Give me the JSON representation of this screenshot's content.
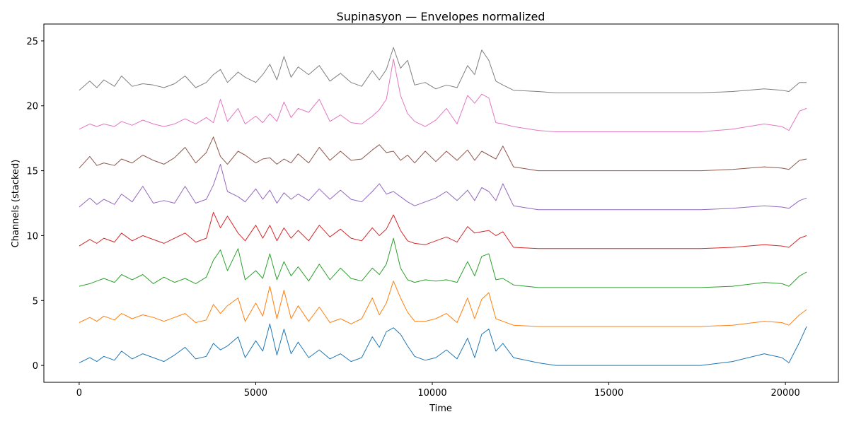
{
  "chart_data": {
    "type": "line",
    "title": "Supinasyon — Envelopes normalized",
    "xlabel": "Time",
    "ylabel": "Channels (stacked)",
    "xlim": [
      -1000,
      21500
    ],
    "ylim": [
      -1.3,
      26.3
    ],
    "xticks": [
      0,
      5000,
      10000,
      15000,
      20000
    ],
    "yticks": [
      0,
      5,
      10,
      15,
      20,
      25
    ],
    "grid": false,
    "legend": "none",
    "series": [
      {
        "color": "#1f77b4",
        "x": [
          0,
          300,
          500,
          700,
          1000,
          1200,
          1500,
          1800,
          2100,
          2400,
          2700,
          3000,
          3300,
          3600,
          3800,
          4000,
          4200,
          4500,
          4700,
          5000,
          5200,
          5400,
          5600,
          5800,
          6000,
          6200,
          6500,
          6800,
          7100,
          7400,
          7700,
          8000,
          8300,
          8500,
          8700,
          8900,
          9100,
          9300,
          9500,
          9800,
          10100,
          10400,
          10700,
          11000,
          11200,
          11400,
          11600,
          11800,
          12000,
          12300,
          13000,
          13500,
          15000,
          17600,
          18500,
          19400,
          19900,
          20100,
          20400,
          20600
        ],
        "y": [
          0.2,
          0.6,
          0.3,
          0.7,
          0.4,
          1.1,
          0.5,
          0.9,
          0.6,
          0.3,
          0.8,
          1.4,
          0.5,
          0.7,
          1.7,
          1.2,
          1.5,
          2.2,
          0.6,
          1.9,
          1.1,
          3.2,
          0.8,
          2.8,
          0.9,
          1.8,
          0.6,
          1.2,
          0.5,
          0.9,
          0.3,
          0.6,
          2.2,
          1.4,
          2.6,
          2.9,
          2.4,
          1.5,
          0.7,
          0.4,
          0.6,
          1.2,
          0.5,
          2.1,
          0.6,
          2.4,
          2.8,
          1.1,
          1.7,
          0.6,
          0.2,
          0.0,
          0.0,
          0.0,
          0.3,
          0.9,
          0.6,
          0.2,
          1.8,
          3.0
        ]
      },
      {
        "color": "#ff7f0e",
        "x": [
          0,
          300,
          500,
          700,
          1000,
          1200,
          1500,
          1800,
          2100,
          2400,
          2700,
          3000,
          3300,
          3600,
          3800,
          4000,
          4200,
          4500,
          4700,
          5000,
          5200,
          5400,
          5600,
          5800,
          6000,
          6200,
          6500,
          6800,
          7100,
          7400,
          7700,
          8000,
          8300,
          8500,
          8700,
          8900,
          9100,
          9300,
          9500,
          9800,
          10100,
          10400,
          10700,
          11000,
          11200,
          11400,
          11600,
          11800,
          12000,
          12300,
          13000,
          13500,
          15000,
          17600,
          18500,
          19400,
          19900,
          20100,
          20400,
          20600
        ],
        "y": [
          3.3,
          3.7,
          3.4,
          3.8,
          3.5,
          4.0,
          3.6,
          3.9,
          3.7,
          3.4,
          3.7,
          4.0,
          3.3,
          3.5,
          4.7,
          4.0,
          4.6,
          5.2,
          3.4,
          4.8,
          3.8,
          6.1,
          3.6,
          5.8,
          3.6,
          4.6,
          3.4,
          4.5,
          3.3,
          3.6,
          3.2,
          3.6,
          5.2,
          3.9,
          4.8,
          6.5,
          5.2,
          4.1,
          3.4,
          3.4,
          3.6,
          4.0,
          3.3,
          5.2,
          3.6,
          5.1,
          5.6,
          3.6,
          3.4,
          3.1,
          3.0,
          3.0,
          3.0,
          3.0,
          3.1,
          3.4,
          3.3,
          3.1,
          3.9,
          4.3
        ]
      },
      {
        "color": "#2ca02c",
        "x": [
          0,
          300,
          500,
          700,
          1000,
          1200,
          1500,
          1800,
          2100,
          2400,
          2700,
          3000,
          3300,
          3600,
          3800,
          4000,
          4200,
          4500,
          4700,
          5000,
          5200,
          5400,
          5600,
          5800,
          6000,
          6200,
          6500,
          6800,
          7100,
          7400,
          7700,
          8000,
          8300,
          8500,
          8700,
          8900,
          9100,
          9300,
          9500,
          9800,
          10100,
          10400,
          10700,
          11000,
          11200,
          11400,
          11600,
          11800,
          12000,
          12300,
          13000,
          13500,
          15000,
          17600,
          18500,
          19400,
          19900,
          20100,
          20400,
          20600
        ],
        "y": [
          6.1,
          6.3,
          6.5,
          6.7,
          6.4,
          7.0,
          6.6,
          7.0,
          6.3,
          6.8,
          6.4,
          6.7,
          6.3,
          6.8,
          8.1,
          8.9,
          7.3,
          9.0,
          6.6,
          7.3,
          6.7,
          8.6,
          6.6,
          8.0,
          6.9,
          7.6,
          6.5,
          7.8,
          6.6,
          7.5,
          6.7,
          6.5,
          7.5,
          7.0,
          7.8,
          9.8,
          7.5,
          6.6,
          6.4,
          6.6,
          6.5,
          6.6,
          6.4,
          8.0,
          6.9,
          8.4,
          8.6,
          6.6,
          6.7,
          6.2,
          6.0,
          6.0,
          6.0,
          6.0,
          6.1,
          6.4,
          6.3,
          6.1,
          6.9,
          7.2
        ]
      },
      {
        "color": "#d62728",
        "x": [
          0,
          300,
          500,
          700,
          1000,
          1200,
          1500,
          1800,
          2100,
          2400,
          2700,
          3000,
          3300,
          3600,
          3800,
          4000,
          4200,
          4500,
          4700,
          5000,
          5200,
          5400,
          5600,
          5800,
          6000,
          6200,
          6500,
          6800,
          7100,
          7400,
          7700,
          8000,
          8300,
          8500,
          8700,
          8900,
          9100,
          9300,
          9500,
          9800,
          10100,
          10400,
          10700,
          11000,
          11200,
          11400,
          11600,
          11800,
          12000,
          12300,
          13000,
          13500,
          15000,
          17600,
          18500,
          19400,
          19900,
          20100,
          20400,
          20600
        ],
        "y": [
          9.2,
          9.7,
          9.4,
          9.8,
          9.5,
          10.2,
          9.6,
          10.0,
          9.7,
          9.4,
          9.8,
          10.2,
          9.5,
          9.8,
          11.8,
          10.6,
          11.5,
          10.2,
          9.6,
          10.8,
          9.8,
          10.8,
          9.6,
          10.6,
          9.8,
          10.4,
          9.6,
          10.8,
          9.9,
          10.5,
          9.8,
          9.6,
          10.6,
          10.0,
          10.5,
          11.6,
          10.4,
          9.6,
          9.4,
          9.3,
          9.6,
          9.9,
          9.5,
          10.7,
          10.2,
          10.3,
          10.4,
          10.0,
          10.3,
          9.1,
          9.0,
          9.0,
          9.0,
          9.0,
          9.1,
          9.3,
          9.2,
          9.1,
          9.8,
          10.0
        ]
      },
      {
        "color": "#9467bd",
        "x": [
          0,
          300,
          500,
          700,
          1000,
          1200,
          1500,
          1800,
          2100,
          2400,
          2700,
          3000,
          3300,
          3600,
          3800,
          4000,
          4200,
          4500,
          4700,
          5000,
          5200,
          5400,
          5600,
          5800,
          6000,
          6200,
          6500,
          6800,
          7100,
          7400,
          7700,
          8000,
          8300,
          8500,
          8700,
          8900,
          9100,
          9300,
          9500,
          9800,
          10100,
          10400,
          10700,
          11000,
          11200,
          11400,
          11600,
          11800,
          12000,
          12300,
          13000,
          13500,
          15000,
          17600,
          18500,
          19400,
          19900,
          20100,
          20400,
          20600
        ],
        "y": [
          12.2,
          12.9,
          12.4,
          12.8,
          12.4,
          13.2,
          12.6,
          13.8,
          12.5,
          12.7,
          12.5,
          13.8,
          12.5,
          12.8,
          13.9,
          15.5,
          13.4,
          13.0,
          12.6,
          13.6,
          12.8,
          13.5,
          12.5,
          13.3,
          12.8,
          13.2,
          12.7,
          13.6,
          12.8,
          13.5,
          12.8,
          12.6,
          13.4,
          14.0,
          13.2,
          13.4,
          13.0,
          12.6,
          12.3,
          12.6,
          12.9,
          13.4,
          12.7,
          13.5,
          12.7,
          13.7,
          13.4,
          12.7,
          14.0,
          12.3,
          12.0,
          12.0,
          12.0,
          12.0,
          12.1,
          12.3,
          12.2,
          12.1,
          12.7,
          12.9
        ]
      },
      {
        "color": "#8c564b",
        "x": [
          0,
          300,
          500,
          700,
          1000,
          1200,
          1500,
          1800,
          2100,
          2400,
          2700,
          3000,
          3300,
          3600,
          3800,
          4000,
          4200,
          4500,
          4700,
          5000,
          5200,
          5400,
          5600,
          5800,
          6000,
          6200,
          6500,
          6800,
          7100,
          7400,
          7700,
          8000,
          8300,
          8500,
          8700,
          8900,
          9100,
          9300,
          9500,
          9800,
          10100,
          10400,
          10700,
          11000,
          11200,
          11400,
          11600,
          11800,
          12000,
          12300,
          13000,
          13500,
          15000,
          17600,
          18500,
          19400,
          19900,
          20100,
          20400,
          20600
        ],
        "y": [
          15.2,
          16.1,
          15.4,
          15.6,
          15.4,
          15.9,
          15.6,
          16.2,
          15.8,
          15.5,
          16.0,
          16.8,
          15.6,
          16.4,
          17.6,
          16.1,
          15.5,
          16.5,
          16.2,
          15.6,
          15.9,
          16.0,
          15.5,
          15.9,
          15.6,
          16.3,
          15.6,
          16.8,
          15.8,
          16.5,
          15.8,
          15.9,
          16.6,
          17.0,
          16.4,
          16.5,
          15.8,
          16.2,
          15.6,
          16.5,
          15.7,
          16.5,
          15.8,
          16.6,
          15.8,
          16.5,
          16.2,
          15.9,
          16.9,
          15.3,
          15.0,
          15.0,
          15.0,
          15.0,
          15.1,
          15.3,
          15.2,
          15.1,
          15.8,
          15.9
        ]
      },
      {
        "color": "#e377c2",
        "x": [
          0,
          300,
          500,
          700,
          1000,
          1200,
          1500,
          1800,
          2100,
          2400,
          2700,
          3000,
          3300,
          3600,
          3800,
          4000,
          4200,
          4500,
          4700,
          5000,
          5200,
          5400,
          5600,
          5800,
          6000,
          6200,
          6500,
          6800,
          7100,
          7400,
          7700,
          8000,
          8300,
          8500,
          8700,
          8900,
          9100,
          9300,
          9500,
          9800,
          10100,
          10400,
          10700,
          11000,
          11200,
          11400,
          11600,
          11800,
          12000,
          12300,
          13000,
          13500,
          15000,
          17600,
          18500,
          19400,
          19900,
          20100,
          20400,
          20600
        ],
        "y": [
          18.2,
          18.6,
          18.4,
          18.6,
          18.4,
          18.8,
          18.5,
          18.9,
          18.6,
          18.4,
          18.6,
          19.0,
          18.6,
          19.1,
          18.7,
          20.5,
          18.8,
          19.8,
          18.6,
          19.2,
          18.7,
          19.4,
          18.8,
          20.3,
          19.1,
          19.8,
          19.5,
          20.5,
          18.8,
          19.3,
          18.7,
          18.6,
          19.2,
          19.7,
          20.5,
          23.6,
          20.8,
          19.4,
          18.8,
          18.4,
          18.9,
          19.8,
          18.6,
          20.8,
          20.2,
          20.9,
          20.6,
          18.7,
          18.6,
          18.4,
          18.1,
          18.0,
          18.0,
          18.0,
          18.2,
          18.6,
          18.4,
          18.1,
          19.6,
          19.8
        ]
      },
      {
        "color": "#7f7f7f",
        "x": [
          0,
          300,
          500,
          700,
          1000,
          1200,
          1500,
          1800,
          2100,
          2400,
          2700,
          3000,
          3300,
          3600,
          3800,
          4000,
          4200,
          4500,
          4700,
          5000,
          5200,
          5400,
          5600,
          5800,
          6000,
          6200,
          6500,
          6800,
          7100,
          7400,
          7700,
          8000,
          8300,
          8500,
          8700,
          8900,
          9100,
          9300,
          9500,
          9800,
          10100,
          10400,
          10700,
          11000,
          11200,
          11400,
          11600,
          11800,
          12000,
          12300,
          13000,
          13500,
          15000,
          17600,
          18500,
          19400,
          19900,
          20100,
          20400,
          20600
        ],
        "y": [
          21.2,
          21.9,
          21.4,
          22.0,
          21.5,
          22.3,
          21.5,
          21.7,
          21.6,
          21.4,
          21.7,
          22.3,
          21.4,
          21.8,
          22.4,
          22.8,
          21.8,
          22.6,
          22.2,
          21.8,
          22.4,
          23.2,
          22.0,
          23.8,
          22.2,
          23.0,
          22.4,
          23.1,
          21.9,
          22.5,
          21.8,
          21.5,
          22.7,
          22.0,
          22.8,
          24.5,
          22.9,
          23.5,
          21.6,
          21.8,
          21.3,
          21.6,
          21.4,
          23.1,
          22.4,
          24.3,
          23.5,
          21.9,
          21.6,
          21.2,
          21.1,
          21.0,
          21.0,
          21.0,
          21.1,
          21.3,
          21.2,
          21.1,
          21.8,
          21.8
        ]
      }
    ]
  }
}
